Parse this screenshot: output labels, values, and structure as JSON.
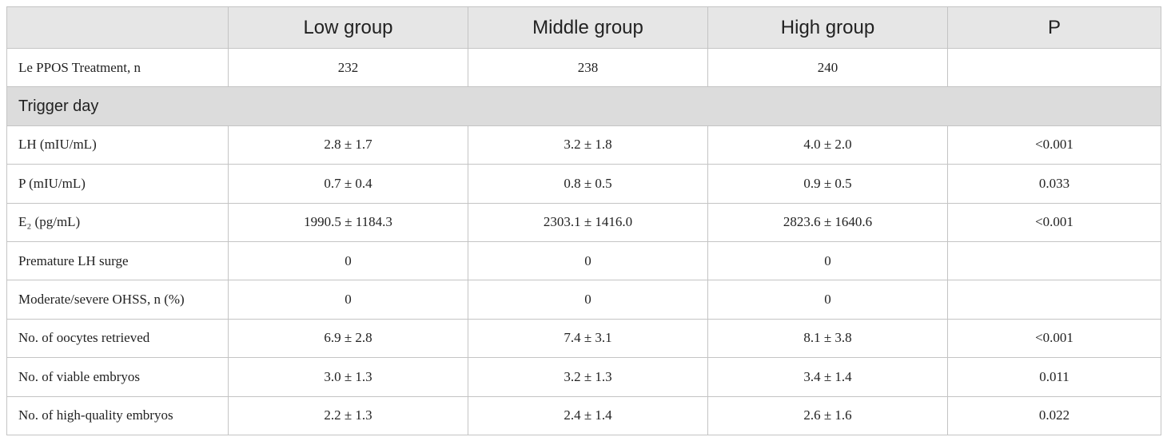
{
  "table": {
    "header": [
      "Low group",
      "Middle group",
      "High group",
      "P"
    ],
    "rows": [
      {
        "label": "Le PPOS Treatment, n",
        "cells": [
          "232",
          "238",
          "240"
        ]
      },
      {
        "section": "Trigger day"
      },
      {
        "label": "LH (mIU/mL)",
        "cells": [
          "2.8 ± 1.7",
          "3.2 ± 1.8",
          "4.0 ± 2.0",
          "<0.001"
        ]
      },
      {
        "label": "P (mIU/mL)",
        "cells": [
          "0.7 ± 0.4",
          "0.8 ± 0.5",
          "0.9 ± 0.5",
          "0.033"
        ]
      },
      {
        "label": "E₂ (pg/mL)",
        "cells": [
          "1990.5 ± 1184.3",
          "2303.1 ± 1416.0",
          "2823.6 ± 1640.6",
          "<0.001"
        ]
      },
      {
        "label": "Premature LH surge",
        "cells": [
          "0",
          "0",
          "0"
        ]
      },
      {
        "label": "Moderate/severe OHSS, n (%)",
        "cells": [
          "0",
          "0",
          "0"
        ]
      },
      {
        "label": "No. of oocytes retrieved",
        "cells": [
          "6.9 ± 2.8",
          "7.4 ± 3.1",
          "8.1 ± 3.8",
          "<0.001"
        ]
      },
      {
        "label": "No. of viable embryos",
        "cells": [
          "3.0 ± 1.3",
          "3.2 ± 1.3",
          "3.4 ± 1.4",
          "0.011"
        ]
      },
      {
        "label": "No. of high-quality embryos",
        "cells": [
          "2.2 ± 1.3",
          "2.4 ± 1.4",
          "2.6 ± 1.6",
          "0.022"
        ]
      }
    ]
  }
}
